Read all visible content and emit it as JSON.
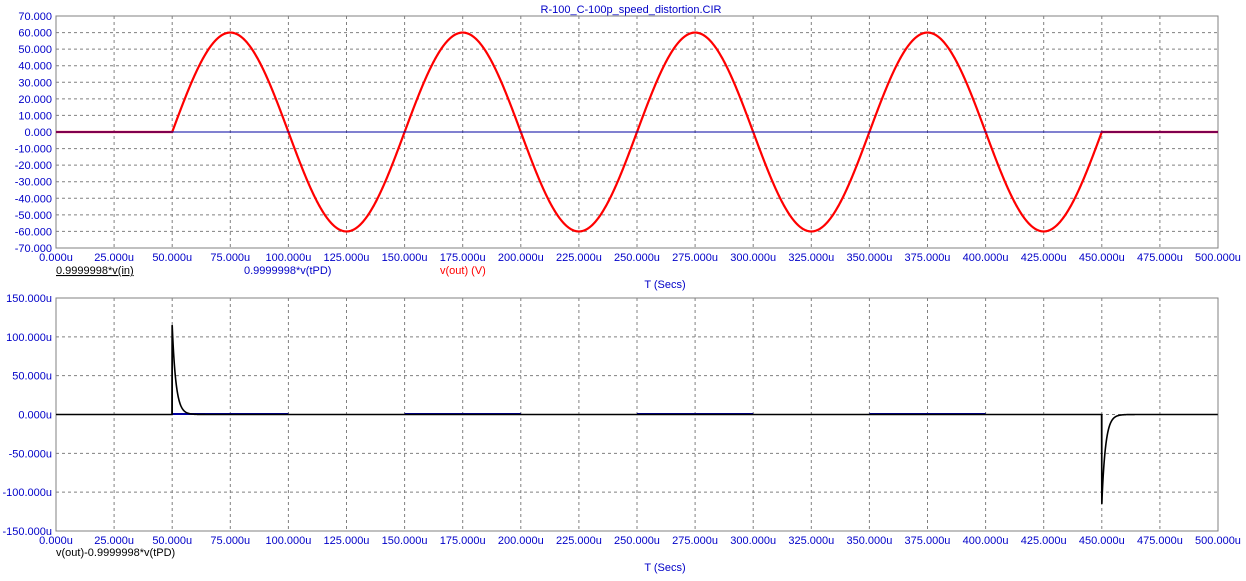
{
  "title": "R-100_C-100p_speed_distortion.CIR",
  "colors": {
    "axis_text": "#0000c8",
    "grid": "#808080",
    "frame": "#808080",
    "out": "#ff0000",
    "blue": "#0000a0",
    "black": "#000000"
  },
  "chart_data": [
    {
      "type": "line",
      "xlabel": "T (Secs)",
      "xlim": [
        0,
        500
      ],
      "x_unit": "u",
      "xticks": [
        "0.000u",
        "25.000u",
        "50.000u",
        "75.000u",
        "100.000u",
        "125.000u",
        "150.000u",
        "175.000u",
        "200.000u",
        "225.000u",
        "250.000u",
        "275.000u",
        "300.000u",
        "325.000u",
        "350.000u",
        "375.000u",
        "400.000u",
        "425.000u",
        "450.000u",
        "475.000u",
        "500.000u"
      ],
      "ylim": [
        -70,
        70
      ],
      "yticks": [
        "70.000",
        "60.000",
        "50.000",
        "40.000",
        "30.000",
        "20.000",
        "10.000",
        "0.000",
        "-10.000",
        "-20.000",
        "-30.000",
        "-40.000",
        "-50.000",
        "-60.000",
        "-70.000"
      ],
      "grid": true,
      "legend": [
        {
          "text": "0.9999998*v(in)",
          "color": "#000000",
          "underline": true
        },
        {
          "text": "0.9999998*v(tPD)",
          "color": "#0000c8"
        },
        {
          "text": "v(out) (V)",
          "color": "#ff0000"
        }
      ],
      "series": [
        {
          "name": "v(out) (V)",
          "color": "#ff0000",
          "shape": "sine",
          "amplitude": 60,
          "period": 100,
          "start": 50,
          "end": 450,
          "x": [
            0,
            50,
            75,
            100,
            125,
            150,
            175,
            200,
            225,
            250,
            275,
            300,
            325,
            350,
            375,
            400,
            425,
            450,
            500
          ],
          "y": [
            0,
            0,
            60,
            0,
            -60,
            0,
            60,
            0,
            -60,
            0,
            60,
            0,
            -60,
            0,
            60,
            0,
            -60,
            0,
            0
          ]
        },
        {
          "name": "0.9999998*v(tPD)",
          "color": "#0000c8",
          "shape": "flat",
          "x": [
            0,
            500
          ],
          "y": [
            0,
            0
          ]
        }
      ]
    },
    {
      "type": "line",
      "xlabel": "T (Secs)",
      "xlim": [
        0,
        500
      ],
      "x_unit": "u",
      "xticks": [
        "0.000u",
        "25.000u",
        "50.000u",
        "75.000u",
        "100.000u",
        "125.000u",
        "150.000u",
        "175.000u",
        "200.000u",
        "225.000u",
        "250.000u",
        "275.000u",
        "300.000u",
        "325.000u",
        "350.000u",
        "375.000u",
        "400.000u",
        "425.000u",
        "450.000u",
        "475.000u",
        "500.000u"
      ],
      "ylim": [
        -150,
        150
      ],
      "yticks": [
        "150.000u",
        "100.000u",
        "50.000u",
        "0.000u",
        "-50.000u",
        "-100.000u",
        "-150.000u"
      ],
      "grid": true,
      "legend": [
        {
          "text": "v(out)-0.9999998*v(tPD)",
          "color": "#000000"
        }
      ],
      "series": [
        {
          "name": "v(out)-0.9999998*v(tPD)",
          "color": "#000000",
          "shape": "spikes",
          "spikes": [
            {
              "x": 50,
              "peak": 115,
              "tau": 1.6
            },
            {
              "x": 450,
              "peak": -115,
              "tau": 1.6
            }
          ],
          "ripple_intervals": [
            [
              50,
              100
            ],
            [
              150,
              200
            ],
            [
              250,
              300
            ],
            [
              350,
              400
            ]
          ],
          "ripple": 1.2
        }
      ]
    }
  ]
}
